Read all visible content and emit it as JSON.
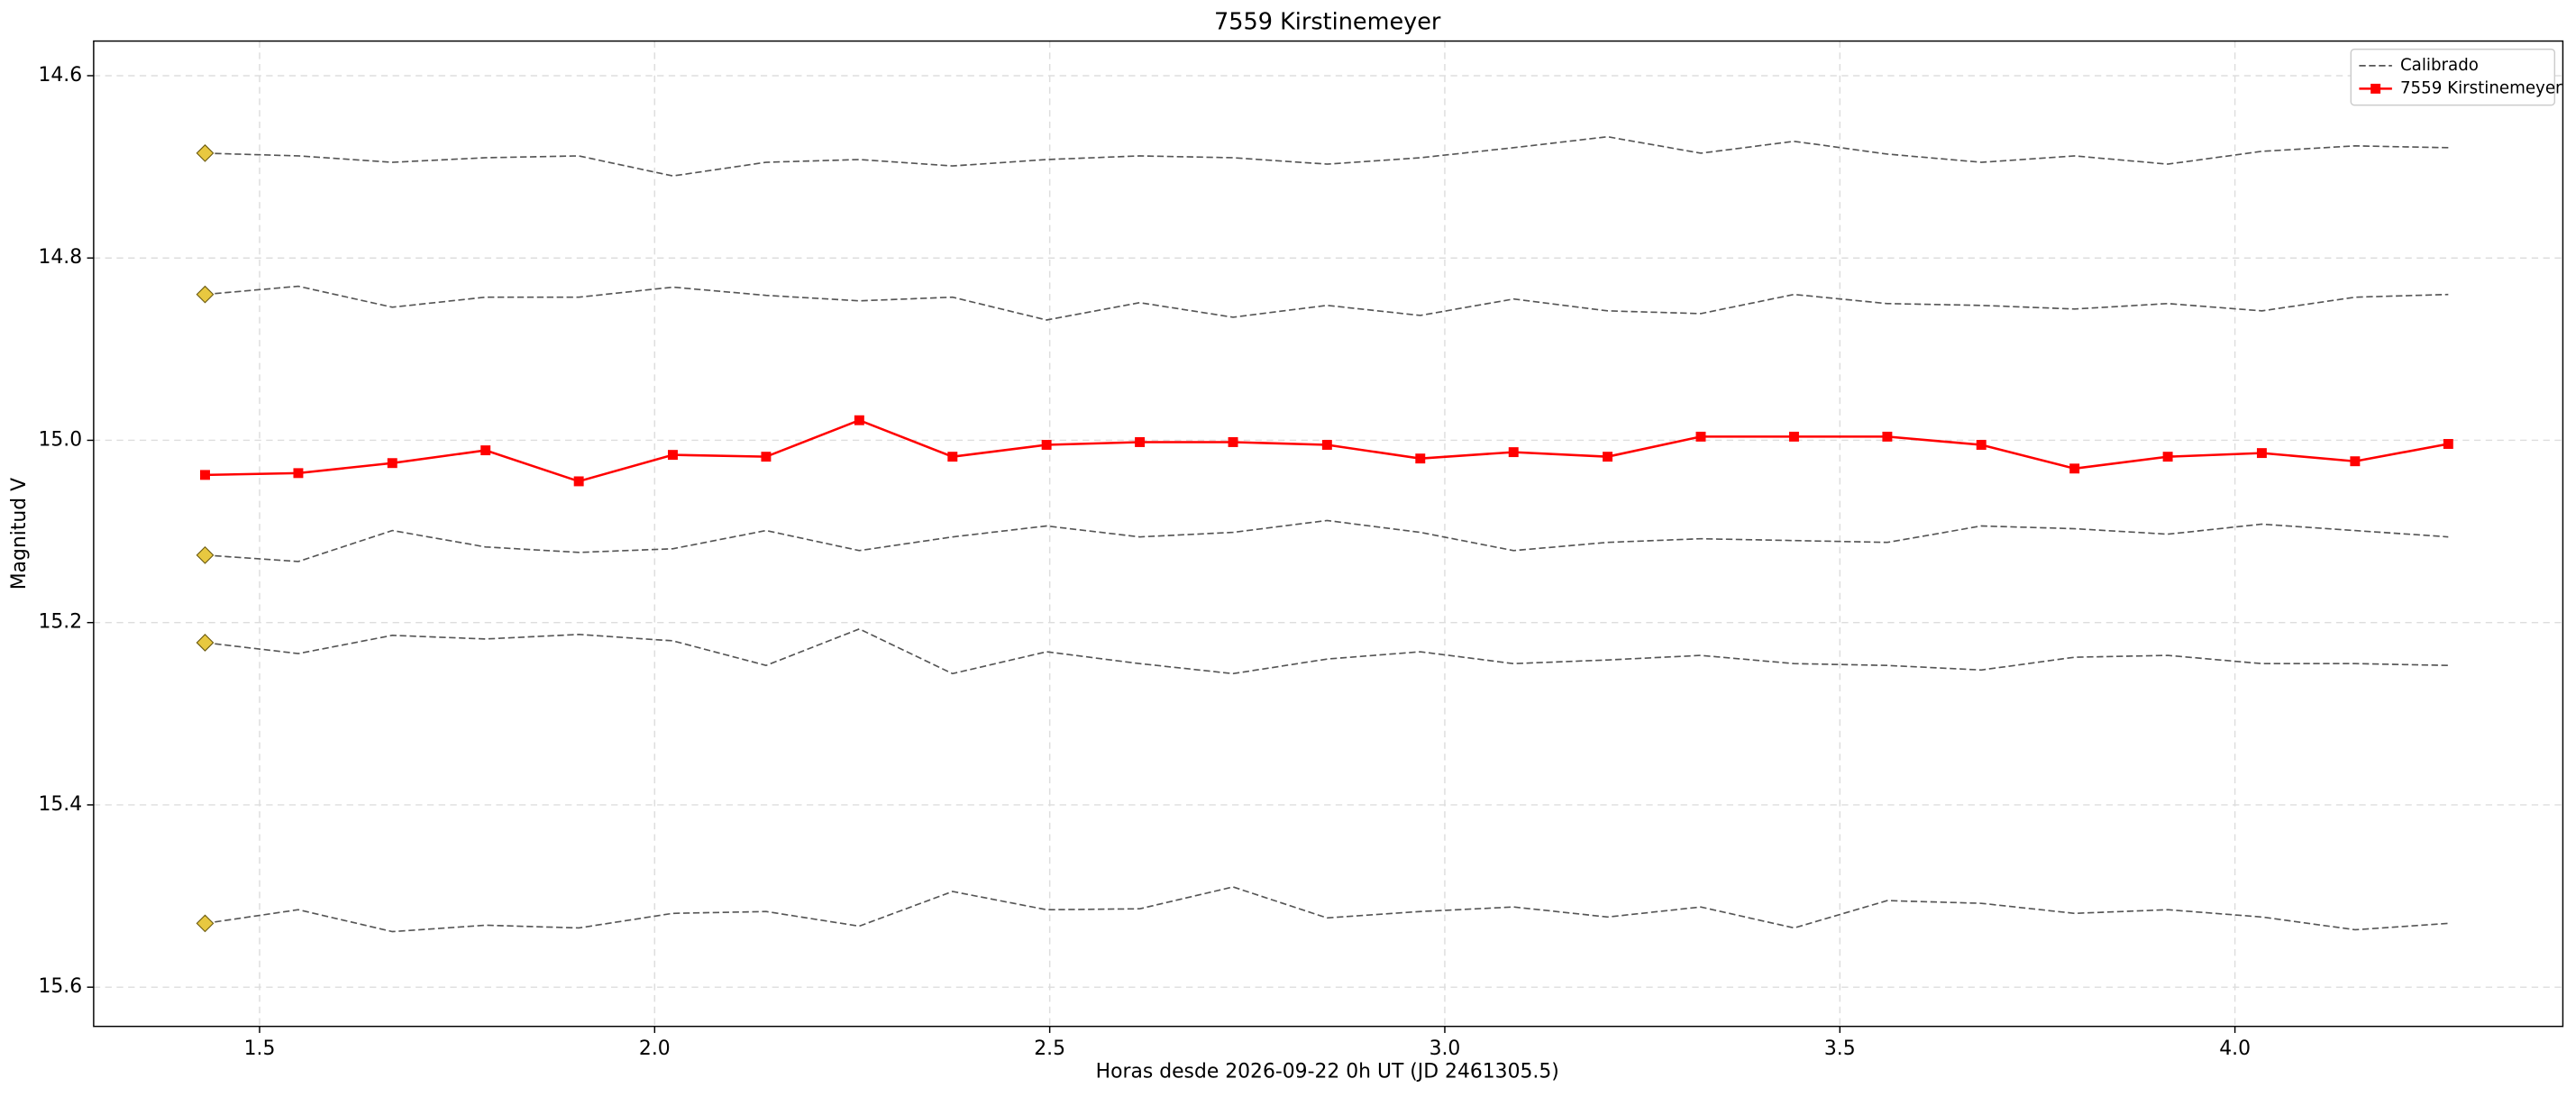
{
  "chart_data": {
    "type": "line",
    "title": "7559 Kirstinemeyer",
    "x_label": "Horas desde 2026-09-22 0h UT (JD 2461305.5)",
    "y_label": "Magnitud V",
    "x": [
      1.431,
      1.549,
      1.668,
      1.786,
      1.904,
      2.023,
      2.141,
      2.259,
      2.377,
      2.496,
      2.614,
      2.732,
      2.851,
      2.969,
      3.087,
      3.206,
      3.324,
      3.442,
      3.56,
      3.679,
      3.797,
      3.915,
      4.034,
      4.152,
      4.27
    ],
    "series": [
      {
        "name": "Calibrado",
        "color": "#555555",
        "linestyle": "dashed",
        "start_marker": "diamond",
        "start_marker_color": "#e8c840",
        "values": [
          14.685,
          14.688,
          14.695,
          14.69,
          14.688,
          14.71,
          14.695,
          14.692,
          14.699,
          14.692,
          14.688,
          14.69,
          14.697,
          14.69,
          14.679,
          14.667,
          14.685,
          14.672,
          14.686,
          14.695,
          14.688,
          14.697,
          14.683,
          14.677,
          14.679
        ]
      },
      {
        "color": "#555555",
        "linestyle": "dashed",
        "start_marker": "diamond",
        "start_marker_color": "#e8c840",
        "values": [
          14.84,
          14.831,
          14.854,
          14.843,
          14.843,
          14.832,
          14.841,
          14.847,
          14.843,
          14.868,
          14.849,
          14.865,
          14.852,
          14.863,
          14.845,
          14.858,
          14.861,
          14.84,
          14.85,
          14.852,
          14.856,
          14.85,
          14.858,
          14.843,
          14.84
        ]
      },
      {
        "color": "#555555",
        "linestyle": "dashed",
        "start_marker": "diamond",
        "start_marker_color": "#e8c840",
        "values": [
          15.126,
          15.133,
          15.099,
          15.117,
          15.123,
          15.119,
          15.099,
          15.121,
          15.106,
          15.094,
          15.106,
          15.101,
          15.088,
          15.101,
          15.121,
          15.112,
          15.108,
          15.11,
          15.112,
          15.094,
          15.097,
          15.103,
          15.092,
          15.099,
          15.106
        ]
      },
      {
        "color": "#555555",
        "linestyle": "dashed",
        "start_marker": "diamond",
        "start_marker_color": "#e8c840",
        "values": [
          15.222,
          15.234,
          15.214,
          15.218,
          15.213,
          15.22,
          15.247,
          15.207,
          15.256,
          15.232,
          15.245,
          15.256,
          15.24,
          15.232,
          15.245,
          15.241,
          15.236,
          15.245,
          15.247,
          15.252,
          15.238,
          15.236,
          15.245,
          15.245,
          15.247
        ]
      },
      {
        "color": "#555555",
        "linestyle": "dashed",
        "start_marker": "diamond",
        "start_marker_color": "#e8c840",
        "values": [
          15.53,
          15.515,
          15.539,
          15.532,
          15.535,
          15.519,
          15.517,
          15.533,
          15.495,
          15.515,
          15.514,
          15.49,
          15.524,
          15.517,
          15.512,
          15.523,
          15.512,
          15.535,
          15.505,
          15.508,
          15.519,
          15.515,
          15.523,
          15.537,
          15.53
        ]
      },
      {
        "name": "7559 Kirstinemeyer",
        "color": "#ff0000",
        "linestyle": "solid",
        "marker": "square",
        "values": [
          15.038,
          15.036,
          15.025,
          15.011,
          15.045,
          15.016,
          15.018,
          14.978,
          15.018,
          15.005,
          15.002,
          15.002,
          15.005,
          15.02,
          15.013,
          15.018,
          14.996,
          14.996,
          14.996,
          15.005,
          15.031,
          15.018,
          15.014,
          15.023,
          15.004
        ]
      }
    ],
    "xlim": [
      1.29,
      4.415
    ],
    "xticks": [
      1.5,
      {
        "value": 2,
        "label": "2.0"
      },
      2.5,
      {
        "value": 3,
        "label": "3.0"
      },
      3.5,
      {
        "value": 4,
        "label": "4.0"
      }
    ],
    "ylim": [
      15.643,
      14.562
    ],
    "yticks": [
      14.6,
      14.8,
      {
        "value": 15,
        "label": "15.0"
      },
      15.2,
      15.4,
      15.6
    ],
    "grid": true,
    "legend": "upper right"
  }
}
